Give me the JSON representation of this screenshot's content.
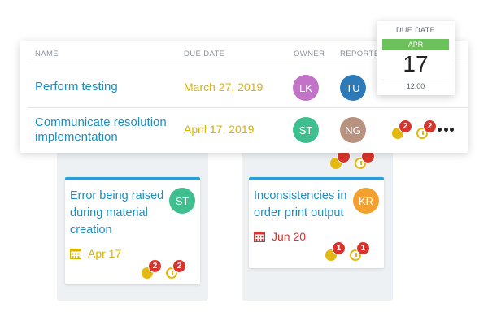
{
  "table": {
    "headers": {
      "name": "NAME",
      "due_date": "DUE DATE",
      "owner": "OWNER",
      "reporter": "REPORTEF"
    },
    "rows": [
      {
        "task": "Perform testing",
        "due": "March 27, 2019",
        "owner": {
          "initials": "LK",
          "color": "#c273c7"
        },
        "reporter": {
          "initials": "TU",
          "color": "#2d7ab8"
        }
      },
      {
        "task": "Communicate resolution implementation",
        "due": "April 17, 2019",
        "owner": {
          "initials": "ST",
          "color": "#3fbf8f"
        },
        "reporter": {
          "initials": "NG",
          "color": "#b99380"
        },
        "counters": {
          "thumb": "2",
          "clock": "2"
        }
      }
    ]
  },
  "date_popup": {
    "label": "DUE DATE",
    "month": "APR",
    "day": "17",
    "time": "12:00"
  },
  "cards": {
    "left": {
      "title": "Error being raised during material creation",
      "owner": {
        "initials": "ST",
        "color": "#3fbf8f"
      },
      "date": "Apr 17",
      "date_color": "#d9b400",
      "counters": {
        "thumb": "2",
        "clock": "2"
      }
    },
    "right": {
      "title": "Inconsistencies in order print output",
      "owner": {
        "initials": "KR",
        "color": "#f2a12e"
      },
      "date": "Jun 20",
      "date_color": "#d9332b",
      "counters": {
        "thumb": "1",
        "clock": "1"
      }
    }
  },
  "icons": {
    "calendar": "calendar-icon",
    "thumb": "thumb-icon",
    "clock": "clock-icon",
    "more": "more-icon"
  }
}
